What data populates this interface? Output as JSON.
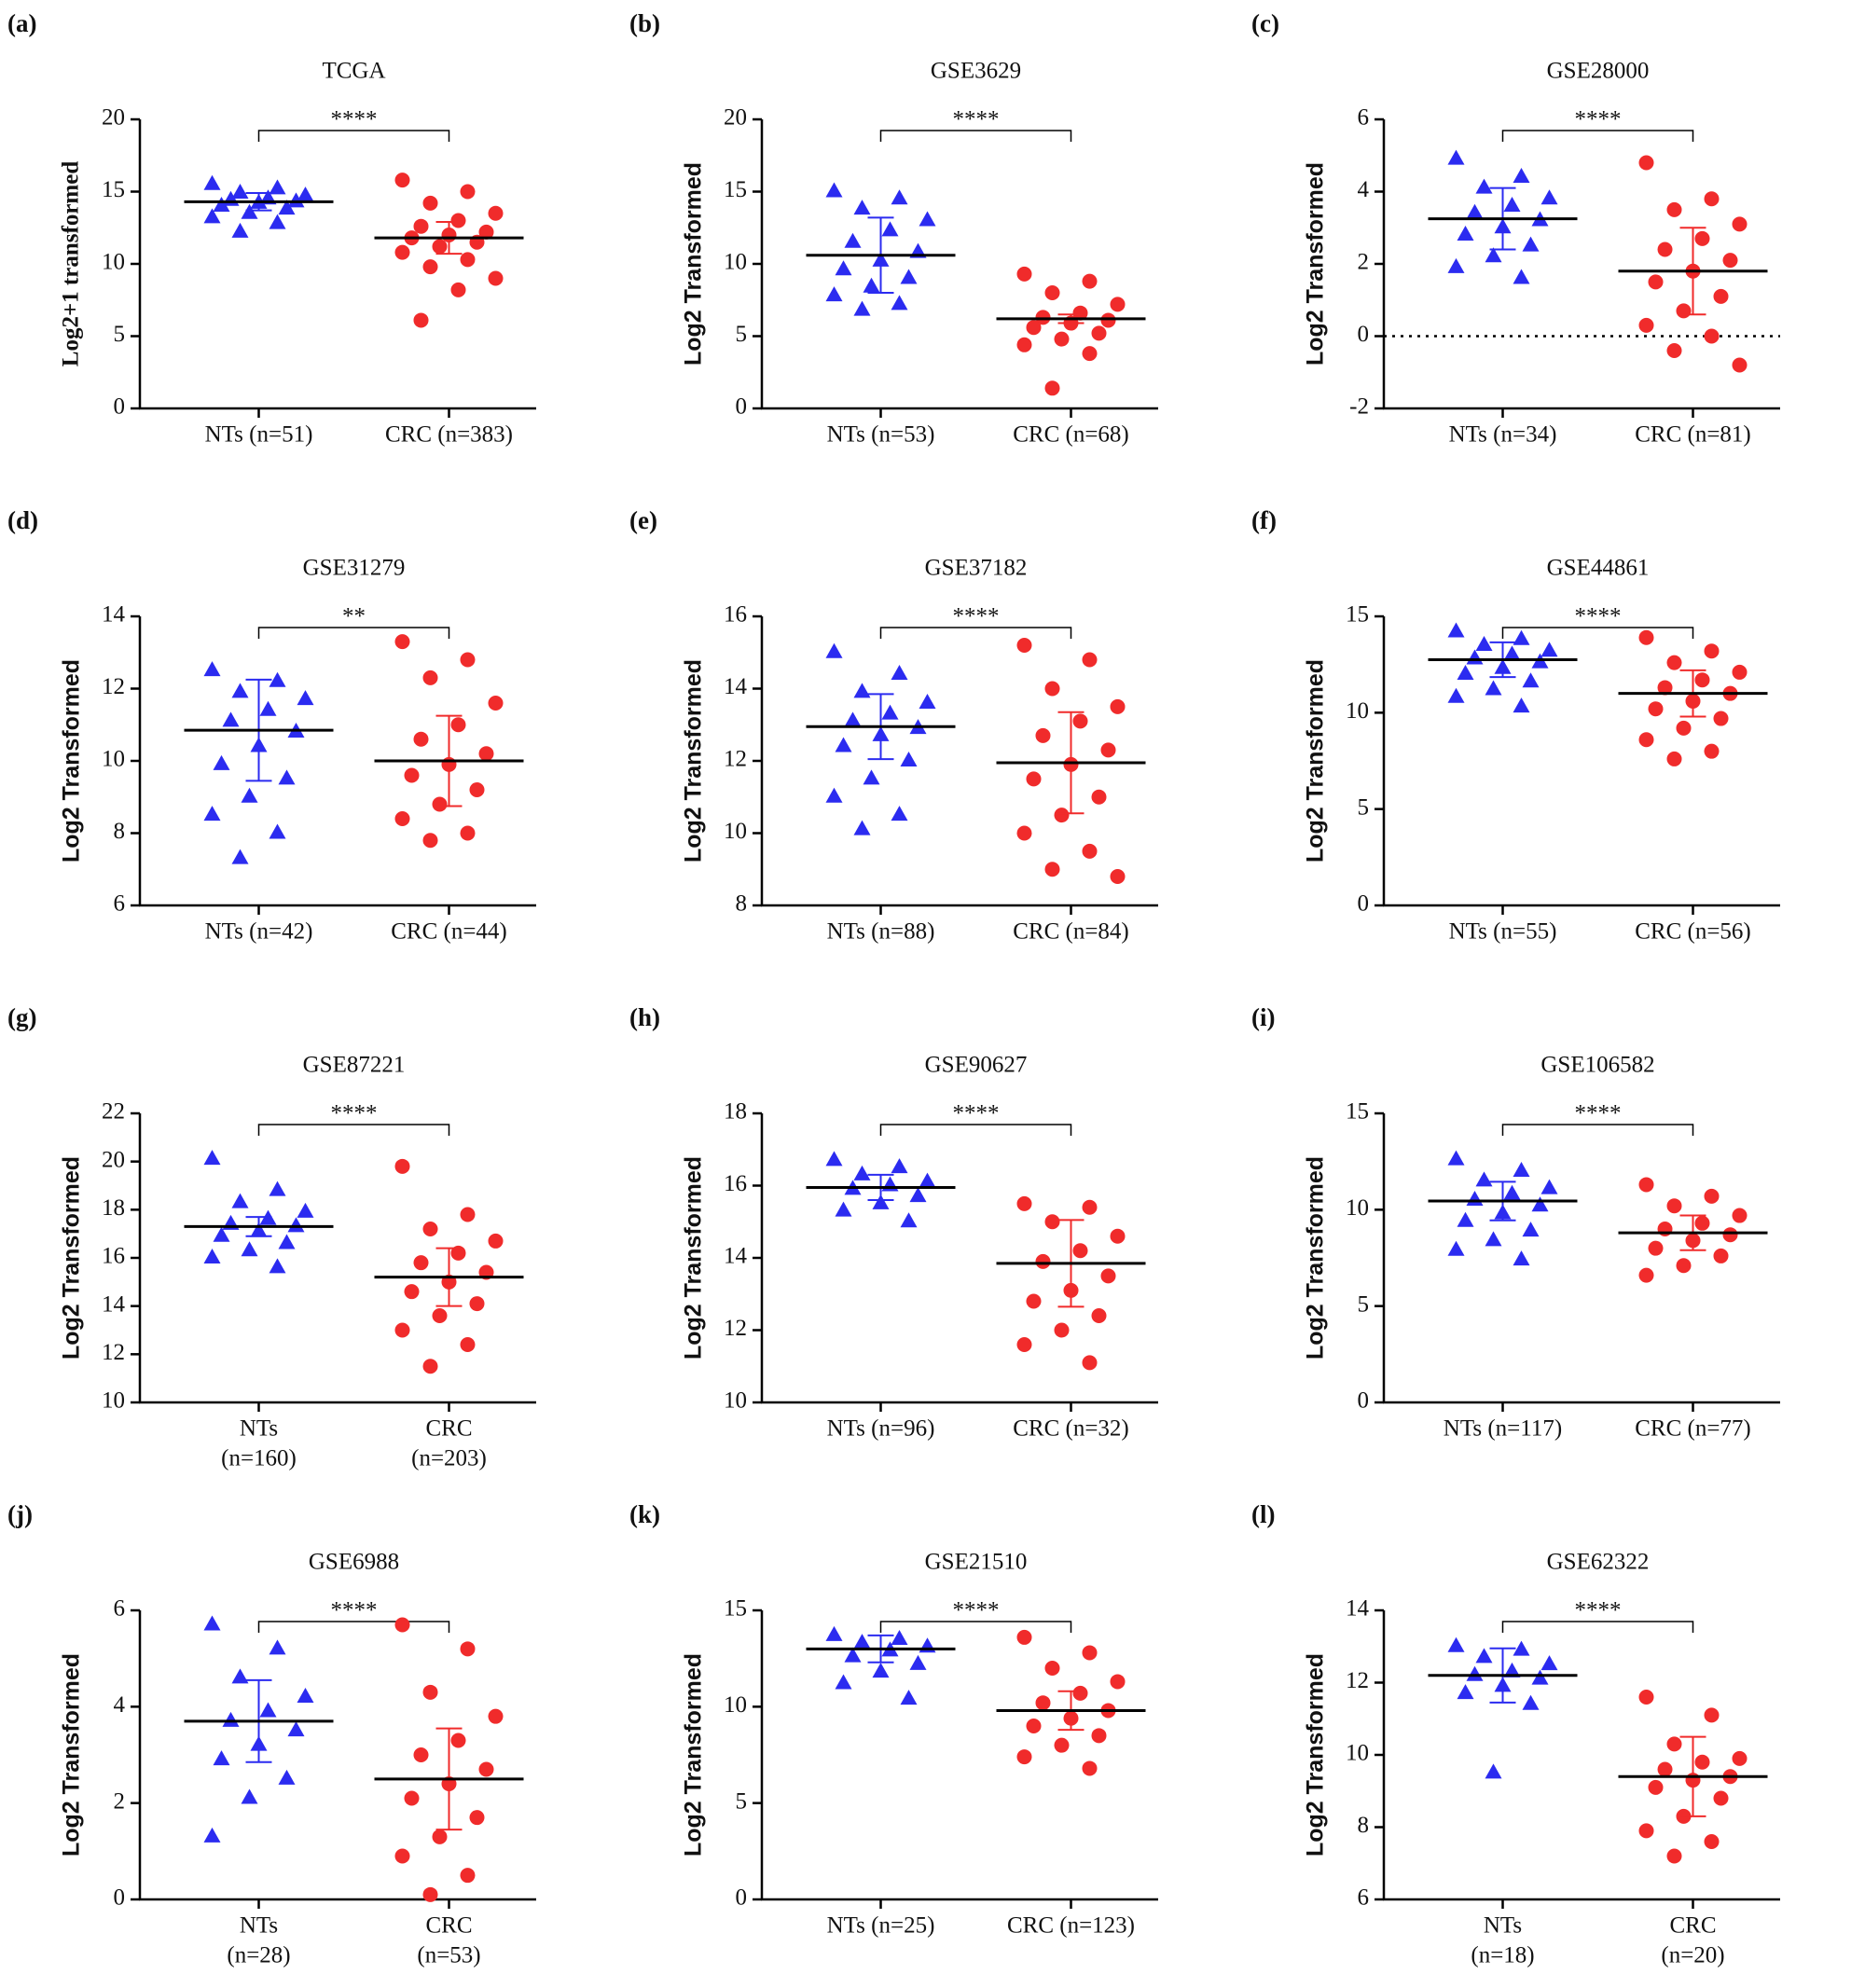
{
  "chart_data": [
    {
      "type": "dot",
      "panel": "(a)",
      "title": "TCGA",
      "y_label": "Log2+1 transformed",
      "annotation": "****",
      "categories": [
        [
          "NTs (n=51)"
        ],
        [
          "CRC (n=383)"
        ]
      ],
      "ylim": [
        0,
        20
      ],
      "yticks": [
        0,
        5,
        10,
        15,
        20
      ],
      "groups": [
        {
          "color": "#2b2bf0",
          "marker": "triangle",
          "mean": 14.3,
          "sd": 0.6,
          "values": [
            15.5,
            15.2,
            14.9,
            14.7,
            14.5,
            14.4,
            14.3,
            14.2,
            14.0,
            13.8,
            13.5,
            13.2,
            12.8,
            12.2
          ]
        },
        {
          "color": "#f02b2b",
          "marker": "circle",
          "mean": 11.8,
          "sd": 1.1,
          "values": [
            15.8,
            15.0,
            14.2,
            13.5,
            13.0,
            12.6,
            12.2,
            12.0,
            11.8,
            11.5,
            11.2,
            10.8,
            10.3,
            9.8,
            9.0,
            8.2,
            6.1
          ]
        }
      ]
    },
    {
      "type": "dot",
      "panel": "(b)",
      "title": "GSE3629",
      "y_label": "Log2 Transformed",
      "annotation": "****",
      "categories": [
        [
          "NTs (n=53)"
        ],
        [
          "CRC (n=68)"
        ]
      ],
      "ylim": [
        0,
        20
      ],
      "yticks": [
        0,
        5,
        10,
        15,
        20
      ],
      "groups": [
        {
          "color": "#2b2bf0",
          "marker": "triangle",
          "mean": 10.6,
          "sd": 2.6,
          "values": [
            15.0,
            14.5,
            13.8,
            13.0,
            12.3,
            11.5,
            10.8,
            10.2,
            9.6,
            9.0,
            8.4,
            7.8,
            7.2,
            6.8
          ]
        },
        {
          "color": "#f02b2b",
          "marker": "circle",
          "mean": 6.2,
          "sd": 0.3,
          "values": [
            9.3,
            8.8,
            8.0,
            7.2,
            6.6,
            6.3,
            6.1,
            5.9,
            5.6,
            5.2,
            4.8,
            4.4,
            3.8,
            1.4
          ]
        }
      ]
    },
    {
      "type": "dot",
      "panel": "(c)",
      "title": "GSE28000",
      "y_label": "Log2 Transformed",
      "annotation": "****",
      "reference_line": 0,
      "categories": [
        [
          "NTs (n=34)"
        ],
        [
          "CRC (n=81)"
        ]
      ],
      "ylim": [
        -2,
        6
      ],
      "yticks": [
        -2,
        0,
        2,
        4,
        6
      ],
      "groups": [
        {
          "color": "#2b2bf0",
          "marker": "triangle",
          "mean": 3.25,
          "sd": 0.85,
          "values": [
            4.9,
            4.4,
            4.1,
            3.8,
            3.6,
            3.4,
            3.2,
            3.0,
            2.8,
            2.5,
            2.2,
            1.9,
            1.6
          ]
        },
        {
          "color": "#f02b2b",
          "marker": "circle",
          "mean": 1.8,
          "sd": 1.2,
          "values": [
            4.8,
            3.8,
            3.5,
            3.1,
            2.7,
            2.4,
            2.1,
            1.8,
            1.5,
            1.1,
            0.7,
            0.3,
            0,
            -0.4,
            -0.8
          ]
        }
      ]
    },
    {
      "type": "dot",
      "panel": "(d)",
      "title": "GSE31279",
      "y_label": "Log2 Transformed",
      "annotation": "**",
      "categories": [
        [
          "NTs (n=42)"
        ],
        [
          "CRC (n=44)"
        ]
      ],
      "ylim": [
        6,
        14
      ],
      "yticks": [
        6,
        8,
        10,
        12,
        14
      ],
      "groups": [
        {
          "color": "#2b2bf0",
          "marker": "triangle",
          "mean": 10.85,
          "sd": 1.4,
          "values": [
            12.5,
            12.2,
            11.9,
            11.7,
            11.4,
            11.1,
            10.8,
            10.4,
            9.9,
            9.5,
            9.0,
            8.5,
            8.0,
            7.3
          ]
        },
        {
          "color": "#f02b2b",
          "marker": "circle",
          "mean": 10.0,
          "sd": 1.25,
          "values": [
            13.3,
            12.8,
            12.3,
            11.6,
            11.0,
            10.6,
            10.2,
            9.9,
            9.6,
            9.2,
            8.8,
            8.4,
            8.0,
            7.8
          ]
        }
      ]
    },
    {
      "type": "dot",
      "panel": "(e)",
      "title": "GSE37182",
      "y_label": "Log2 Transformed",
      "annotation": "****",
      "categories": [
        [
          "NTs (n=88)"
        ],
        [
          "CRC (n=84)"
        ]
      ],
      "ylim": [
        8,
        16
      ],
      "yticks": [
        8,
        10,
        12,
        14,
        16
      ],
      "groups": [
        {
          "color": "#2b2bf0",
          "marker": "triangle",
          "mean": 12.95,
          "sd": 0.9,
          "values": [
            15.0,
            14.4,
            13.9,
            13.6,
            13.3,
            13.1,
            12.9,
            12.7,
            12.4,
            12.0,
            11.5,
            11.0,
            10.5,
            10.1
          ]
        },
        {
          "color": "#f02b2b",
          "marker": "circle",
          "mean": 11.95,
          "sd": 1.4,
          "values": [
            15.2,
            14.8,
            14.0,
            13.5,
            13.1,
            12.7,
            12.3,
            11.9,
            11.5,
            11.0,
            10.5,
            10.0,
            9.5,
            9.0,
            8.8
          ]
        }
      ]
    },
    {
      "type": "dot",
      "panel": "(f)",
      "title": "GSE44861",
      "y_label": "Log2 Transformed",
      "annotation": "****",
      "categories": [
        [
          "NTs (n=55)"
        ],
        [
          "CRC (n=56)"
        ]
      ],
      "ylim": [
        0,
        15
      ],
      "yticks": [
        0,
        5,
        10,
        15
      ],
      "groups": [
        {
          "color": "#2b2bf0",
          "marker": "triangle",
          "mean": 12.75,
          "sd": 0.9,
          "values": [
            14.2,
            13.8,
            13.5,
            13.2,
            13.0,
            12.8,
            12.6,
            12.3,
            12.0,
            11.6,
            11.2,
            10.8,
            10.3
          ]
        },
        {
          "color": "#f02b2b",
          "marker": "circle",
          "mean": 11.0,
          "sd": 1.2,
          "values": [
            13.9,
            13.2,
            12.6,
            12.1,
            11.7,
            11.3,
            11.0,
            10.6,
            10.2,
            9.7,
            9.2,
            8.6,
            8.0,
            7.6
          ]
        }
      ]
    },
    {
      "type": "dot",
      "panel": "(g)",
      "title": "GSE87221",
      "y_label": "Log2 Transformed",
      "annotation": "****",
      "categories": [
        [
          "NTs",
          "(n=160)"
        ],
        [
          "CRC",
          "(n=203)"
        ]
      ],
      "ylim": [
        10,
        22
      ],
      "yticks": [
        10,
        12,
        14,
        16,
        18,
        20,
        22
      ],
      "groups": [
        {
          "color": "#2b2bf0",
          "marker": "triangle",
          "mean": 17.3,
          "sd": 0.4,
          "values": [
            20.1,
            18.8,
            18.3,
            17.9,
            17.6,
            17.4,
            17.3,
            17.1,
            16.9,
            16.6,
            16.3,
            16.0,
            15.6
          ]
        },
        {
          "color": "#f02b2b",
          "marker": "circle",
          "mean": 15.2,
          "sd": 1.2,
          "values": [
            19.8,
            17.8,
            17.2,
            16.7,
            16.2,
            15.8,
            15.4,
            15.0,
            14.6,
            14.1,
            13.6,
            13.0,
            12.4,
            11.5
          ]
        }
      ]
    },
    {
      "type": "dot",
      "panel": "(h)",
      "title": "GSE90627",
      "y_label": "Log2 Transformed",
      "annotation": "****",
      "categories": [
        [
          "NTs (n=96)"
        ],
        [
          "CRC (n=32)"
        ]
      ],
      "ylim": [
        10,
        18
      ],
      "yticks": [
        10,
        12,
        14,
        16,
        18
      ],
      "groups": [
        {
          "color": "#2b2bf0",
          "marker": "triangle",
          "mean": 15.95,
          "sd": 0.35,
          "values": [
            16.7,
            16.5,
            16.3,
            16.1,
            16.0,
            15.9,
            15.7,
            15.5,
            15.3,
            15.0
          ]
        },
        {
          "color": "#f02b2b",
          "marker": "circle",
          "mean": 13.85,
          "sd": 1.2,
          "values": [
            15.5,
            15.4,
            15.0,
            14.6,
            14.2,
            13.9,
            13.5,
            13.1,
            12.8,
            12.4,
            12.0,
            11.6,
            11.1
          ]
        }
      ]
    },
    {
      "type": "dot",
      "panel": "(i)",
      "title": "GSE106582",
      "y_label": "Log2 Transformed",
      "annotation": "****",
      "categories": [
        [
          "NTs (n=117)"
        ],
        [
          "CRC (n=77)"
        ]
      ],
      "ylim": [
        0,
        15
      ],
      "yticks": [
        0,
        5,
        10,
        15
      ],
      "groups": [
        {
          "color": "#2b2bf0",
          "marker": "triangle",
          "mean": 10.45,
          "sd": 1.0,
          "values": [
            12.6,
            12.0,
            11.5,
            11.1,
            10.8,
            10.5,
            10.2,
            9.8,
            9.4,
            8.9,
            8.4,
            7.9,
            7.4
          ]
        },
        {
          "color": "#f02b2b",
          "marker": "circle",
          "mean": 8.8,
          "sd": 0.9,
          "values": [
            11.3,
            10.7,
            10.2,
            9.7,
            9.3,
            9.0,
            8.7,
            8.4,
            8.0,
            7.6,
            7.1,
            6.6
          ]
        }
      ]
    },
    {
      "type": "dot",
      "panel": "(j)",
      "title": "GSE6988",
      "y_label": "Log2 Transformed",
      "annotation": "****",
      "categories": [
        [
          "NTs",
          "(n=28)"
        ],
        [
          "CRC",
          "(n=53)"
        ]
      ],
      "ylim": [
        0,
        6
      ],
      "yticks": [
        0,
        2,
        4,
        6
      ],
      "groups": [
        {
          "color": "#2b2bf0",
          "marker": "triangle",
          "mean": 3.7,
          "sd": 0.85,
          "values": [
            5.7,
            5.2,
            4.6,
            4.2,
            3.9,
            3.7,
            3.5,
            3.2,
            2.9,
            2.5,
            2.1,
            1.3
          ]
        },
        {
          "color": "#f02b2b",
          "marker": "circle",
          "mean": 2.5,
          "sd": 1.05,
          "values": [
            5.7,
            5.2,
            4.3,
            3.8,
            3.3,
            3.0,
            2.7,
            2.4,
            2.1,
            1.7,
            1.3,
            0.9,
            0.5,
            0.1
          ]
        }
      ]
    },
    {
      "type": "dot",
      "panel": "(k)",
      "title": "GSE21510",
      "y_label": "Log2 Transformed",
      "annotation": "****",
      "categories": [
        [
          "NTs (n=25)"
        ],
        [
          "CRC (n=123)"
        ]
      ],
      "ylim": [
        0,
        15
      ],
      "yticks": [
        0,
        5,
        10,
        15
      ],
      "groups": [
        {
          "color": "#2b2bf0",
          "marker": "triangle",
          "mean": 13.0,
          "sd": 0.7,
          "values": [
            13.7,
            13.5,
            13.3,
            13.1,
            12.9,
            12.6,
            12.2,
            11.8,
            11.2,
            10.4
          ]
        },
        {
          "color": "#f02b2b",
          "marker": "circle",
          "mean": 9.8,
          "sd": 1.0,
          "values": [
            13.6,
            12.8,
            12.0,
            11.3,
            10.7,
            10.2,
            9.8,
            9.4,
            9.0,
            8.5,
            8.0,
            7.4,
            6.8
          ]
        }
      ]
    },
    {
      "type": "dot",
      "panel": "(l)",
      "title": "GSE62322",
      "y_label": "Log2 Transformed",
      "annotation": "****",
      "categories": [
        [
          "NTs",
          "(n=18)"
        ],
        [
          "CRC",
          "(n=20)"
        ]
      ],
      "ylim": [
        6,
        14
      ],
      "yticks": [
        6,
        8,
        10,
        12,
        14
      ],
      "groups": [
        {
          "color": "#2b2bf0",
          "marker": "triangle",
          "mean": 12.2,
          "sd": 0.75,
          "values": [
            13.0,
            12.9,
            12.7,
            12.5,
            12.3,
            12.2,
            12.1,
            11.9,
            11.7,
            11.4,
            9.5
          ]
        },
        {
          "color": "#f02b2b",
          "marker": "circle",
          "mean": 9.4,
          "sd": 1.1,
          "values": [
            11.6,
            11.1,
            10.3,
            9.9,
            9.8,
            9.6,
            9.4,
            9.3,
            9.1,
            8.8,
            8.3,
            7.9,
            7.6,
            7.2
          ]
        }
      ]
    }
  ]
}
